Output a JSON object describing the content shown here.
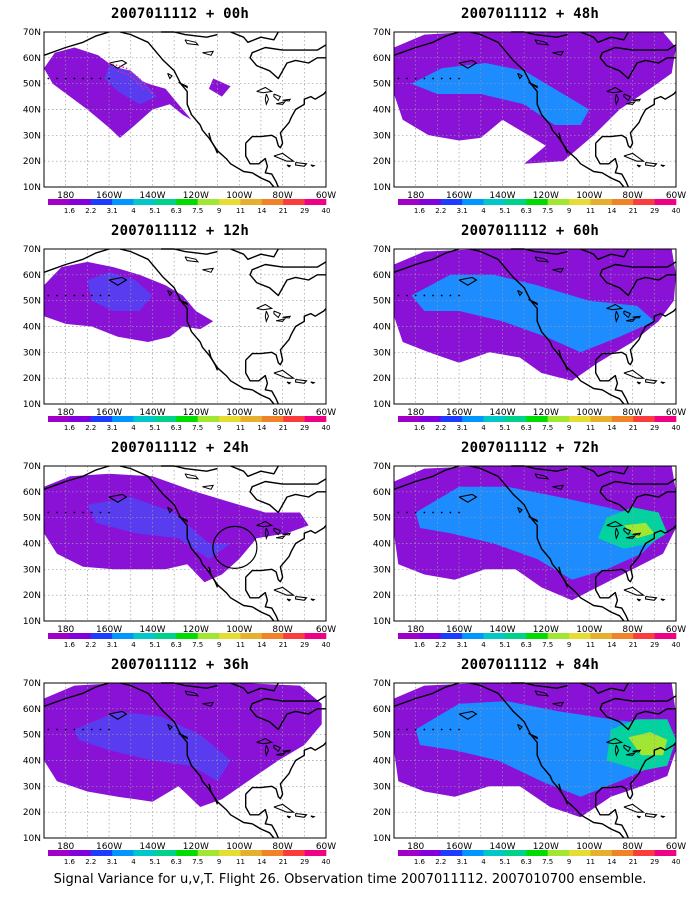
{
  "panels": [
    {
      "title": "2007011112 + 00h",
      "lead": 0,
      "circle": false
    },
    {
      "title": "2007011112 + 48h",
      "lead": 48,
      "circle": false
    },
    {
      "title": "2007011112 + 12h",
      "lead": 12,
      "circle": false
    },
    {
      "title": "2007011112 + 60h",
      "lead": 60,
      "circle": false
    },
    {
      "title": "2007011112 + 24h",
      "lead": 24,
      "circle": true
    },
    {
      "title": "2007011112 + 72h",
      "lead": 72,
      "circle": false
    },
    {
      "title": "2007011112 + 36h",
      "lead": 36,
      "circle": false
    },
    {
      "title": "2007011112 + 84h",
      "lead": 84,
      "circle": false
    }
  ],
  "lat_labels": [
    "10N",
    "20N",
    "30N",
    "40N",
    "50N",
    "60N",
    "70N"
  ],
  "lon_labels": [
    "180",
    "160W",
    "140W",
    "120W",
    "100W",
    "80W",
    "60W"
  ],
  "colorbar": {
    "labels": [
      "1.6",
      "2.2",
      "3.1",
      "4",
      "5.1",
      "6.3",
      "7.5",
      "9",
      "11",
      "14",
      "21",
      "29",
      "40"
    ],
    "colors": [
      "#a000c8",
      "#8200dc",
      "#1e3cff",
      "#0096ff",
      "#00c8c8",
      "#00d28c",
      "#00dc00",
      "#a0e632",
      "#e6dc32",
      "#e6af2d",
      "#f08228",
      "#fa3c3c",
      "#f00082"
    ]
  },
  "footer": "Signal Variance for u,v,T. Flight 26. Observation time 2007011112. 2007010700 ensemble."
}
